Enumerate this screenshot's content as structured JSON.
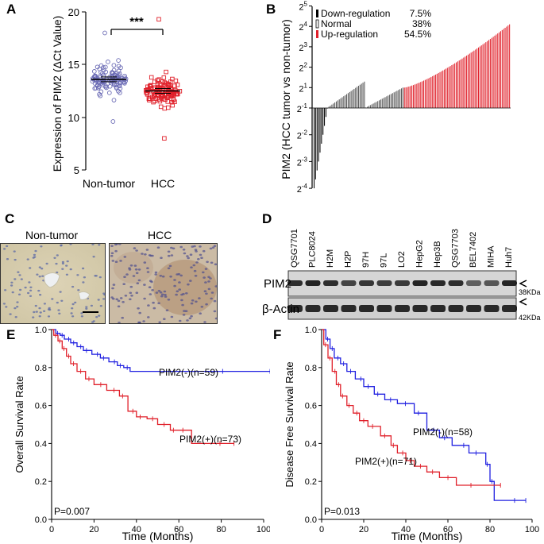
{
  "figure": {
    "panel_letters": [
      "A",
      "B",
      "C",
      "D",
      "E",
      "F"
    ]
  },
  "panelA": {
    "ylabel": "Expression of PIM2 (ΔCt Value)",
    "yticks": [
      "20",
      "15",
      "10",
      "5"
    ],
    "categories": [
      "Non-tumor",
      "HCC"
    ],
    "significance": "***",
    "colors": {
      "nontumor": "#6b6bb5",
      "hcc": "#e0202a"
    }
  },
  "panelB": {
    "ylabel": "PIM2 (HCC tumor vs non-tumor)",
    "yticks": [
      {
        "base": "2",
        "exp": "5"
      },
      {
        "base": "2",
        "exp": "4"
      },
      {
        "base": "2",
        "exp": "3"
      },
      {
        "base": "2",
        "exp": "2"
      },
      {
        "base": "2",
        "exp": "1"
      },
      {
        "base": "2",
        "exp": "-1"
      },
      {
        "base": "2",
        "exp": "-2"
      },
      {
        "base": "2",
        "exp": "-3"
      },
      {
        "base": "2",
        "exp": "-4"
      }
    ],
    "legend": [
      {
        "label": "Down-regulation",
        "value": "7.5%",
        "color": "#000000"
      },
      {
        "label": "Normal",
        "value": "38%",
        "color": "#888888"
      },
      {
        "label": "Up-regulation",
        "value": "54.5%",
        "color": "#e0202a"
      }
    ]
  },
  "panelC": {
    "labels": [
      "Non-tumor",
      "HCC"
    ]
  },
  "panelD": {
    "lanes": [
      "QSG7701",
      "PLC8024",
      "H2M",
      "H2P",
      "97H",
      "97L",
      "LO2",
      "HepG2",
      "Hep3B",
      "QSG7703",
      "BEL7402",
      "MIHA",
      "Huh7"
    ],
    "rows": [
      {
        "label": "PIM2",
        "size": "38KDa"
      },
      {
        "label": "β-Actin",
        "size": "42KDa"
      }
    ]
  },
  "chart_data": [
    {
      "type": "scatter",
      "panel": "A",
      "title": "",
      "xlabel": "",
      "ylabel": "Expression of PIM2 (ΔCt Value)",
      "categories": [
        "Non-tumor",
        "HCC"
      ],
      "ylim": [
        5,
        20
      ],
      "series": [
        {
          "name": "Non-tumor",
          "mean": 13.6,
          "min": 9.6,
          "max": 18.0
        },
        {
          "name": "HCC",
          "mean": 12.5,
          "min": 8.0,
          "max": 19.3
        }
      ],
      "annotations": [
        "***"
      ]
    },
    {
      "type": "bar",
      "panel": "B",
      "ylabel": "PIM2 (HCC tumor vs non-tumor)",
      "yscale": "log2",
      "ylim": [
        -4,
        5
      ],
      "series": [
        {
          "name": "Down-regulation",
          "percent": 7.5,
          "log2_range": [
            -4.0,
            -1.0
          ]
        },
        {
          "name": "Normal",
          "percent": 38,
          "log2_range": [
            -1.0,
            1.0
          ]
        },
        {
          "name": "Up-regulation",
          "percent": 54.5,
          "log2_range": [
            1.0,
            4.1
          ]
        }
      ]
    },
    {
      "type": "line",
      "panel": "E",
      "xlabel": "Time (Months)",
      "ylabel": "Overall Survival Rate",
      "xlim": [
        0,
        100
      ],
      "ylim": [
        0,
        1.0
      ],
      "xticks": [
        "0",
        "20",
        "40",
        "60",
        "80",
        "100"
      ],
      "yticks": [
        "0.0",
        "0.2",
        "0.4",
        "0.6",
        "0.8",
        "1.0"
      ],
      "pvalue": "P=0.007",
      "series": [
        {
          "name": "PIM2(-)(n=59)",
          "color": "#1f1fe0",
          "x": [
            0,
            2,
            4,
            6,
            9,
            12,
            15,
            19,
            23,
            27,
            31,
            34,
            37,
            103
          ],
          "y": [
            1.0,
            0.98,
            0.97,
            0.95,
            0.93,
            0.91,
            0.89,
            0.87,
            0.85,
            0.83,
            0.81,
            0.8,
            0.78,
            0.78
          ]
        },
        {
          "name": "PIM2(+)(n=73)",
          "color": "#e0202a",
          "x": [
            0,
            1,
            3,
            5,
            7,
            9,
            12,
            16,
            20,
            26,
            32,
            36,
            40,
            45,
            50,
            56,
            60,
            66,
            86
          ],
          "y": [
            1.0,
            0.97,
            0.94,
            0.9,
            0.86,
            0.82,
            0.78,
            0.74,
            0.71,
            0.68,
            0.65,
            0.57,
            0.54,
            0.53,
            0.5,
            0.47,
            0.47,
            0.4,
            0.4
          ]
        }
      ]
    },
    {
      "type": "line",
      "panel": "F",
      "xlabel": "Time (Months)",
      "ylabel": "Disease Free Survival Rate",
      "xlim": [
        0,
        100
      ],
      "ylim": [
        0,
        1.0
      ],
      "xticks": [
        "0",
        "20",
        "40",
        "60",
        "80",
        "100"
      ],
      "yticks": [
        "0.0",
        "0.2",
        "0.4",
        "0.6",
        "0.8",
        "1.0"
      ],
      "pvalue": "P=0.013",
      "series": [
        {
          "name": "PIM2(-)(n=58)",
          "color": "#1f1fe0",
          "x": [
            0,
            2,
            4,
            6,
            9,
            12,
            16,
            20,
            25,
            30,
            36,
            44,
            50,
            56,
            62,
            70,
            78,
            80,
            82,
            97
          ],
          "y": [
            1.0,
            0.95,
            0.9,
            0.85,
            0.82,
            0.78,
            0.74,
            0.7,
            0.66,
            0.63,
            0.61,
            0.56,
            0.47,
            0.43,
            0.39,
            0.35,
            0.29,
            0.2,
            0.1,
            0.1
          ]
        },
        {
          "name": "PIM2(+)(n=71)",
          "color": "#e0202a",
          "x": [
            0,
            1,
            3,
            5,
            7,
            9,
            12,
            15,
            18,
            22,
            28,
            33,
            36,
            40,
            44,
            50,
            56,
            64,
            85
          ],
          "y": [
            1.0,
            0.92,
            0.85,
            0.78,
            0.71,
            0.65,
            0.6,
            0.56,
            0.52,
            0.49,
            0.44,
            0.39,
            0.35,
            0.31,
            0.28,
            0.25,
            0.22,
            0.18,
            0.18
          ]
        }
      ]
    }
  ]
}
